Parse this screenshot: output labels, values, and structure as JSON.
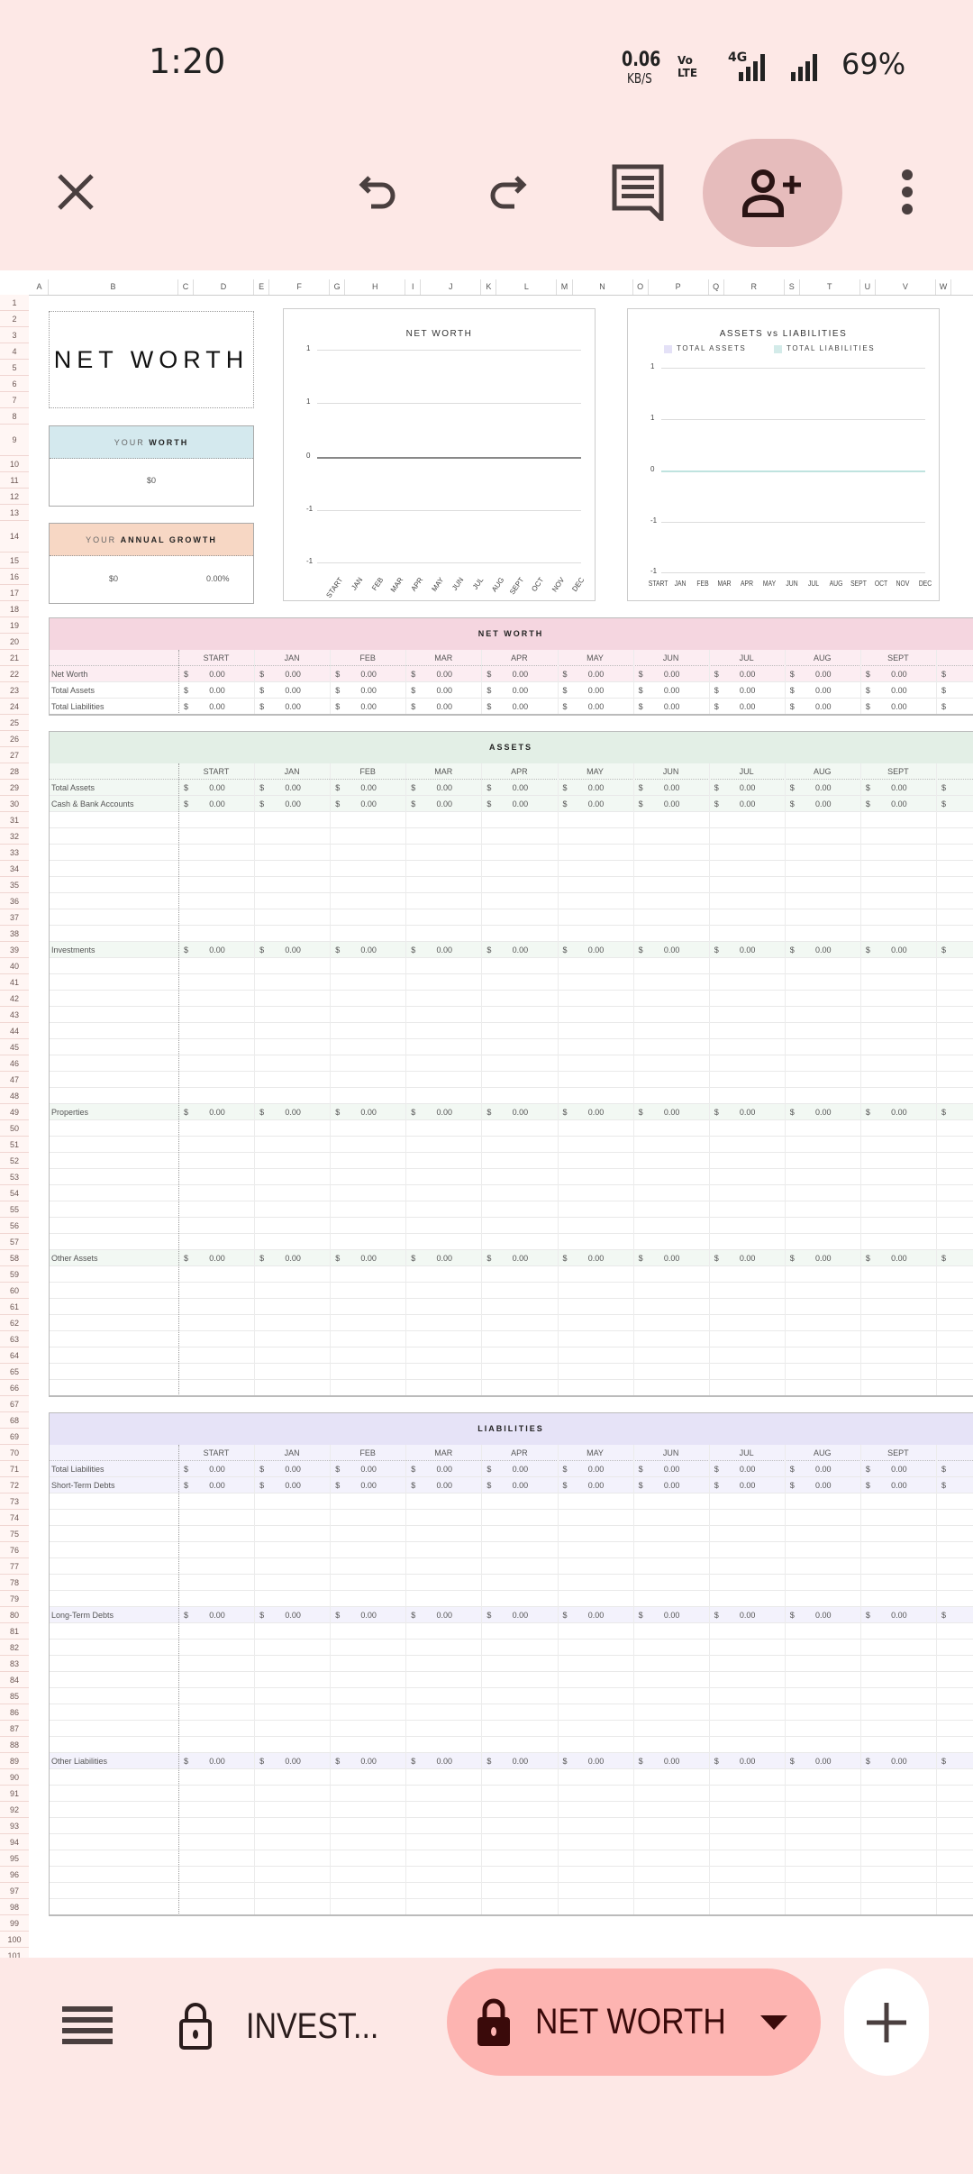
{
  "status_bar": {
    "time": "1:20",
    "net_speed": "0.06",
    "net_unit": "KB/S",
    "volte": "Vo LTE",
    "network": "4G",
    "battery": "69%"
  },
  "toolbar": {
    "icons": [
      "close-icon",
      "undo-icon",
      "redo-icon",
      "comment-icon",
      "add-person-icon",
      "more-vert-icon"
    ],
    "share_bg": "#e6bcbc"
  },
  "columns": [
    "A",
    "B",
    "C",
    "D",
    "E",
    "F",
    "G",
    "H",
    "I",
    "J",
    "K",
    "L",
    "M",
    "N",
    "O",
    "P",
    "Q",
    "R",
    "S",
    "T",
    "U",
    "V",
    "W"
  ],
  "row_count": 101,
  "summary": {
    "title": "NET WORTH",
    "your_worth": {
      "prefix": "YOUR",
      "bold": "WORTH",
      "value": "$0",
      "color": "#d4e9ee"
    },
    "annual_growth": {
      "prefix": "YOUR",
      "bold": "ANNUAL GROWTH",
      "value": "$0",
      "percent": "0.00%",
      "color": "#f7d7c4"
    }
  },
  "chart_data": [
    {
      "type": "line",
      "title": "NET WORTH",
      "categories": [
        "START",
        "JAN",
        "FEB",
        "MAR",
        "APR",
        "MAY",
        "JUN",
        "JUL",
        "AUG",
        "SEPT",
        "OCT",
        "NOV",
        "DEC"
      ],
      "y_tick_labels": [
        "1",
        "1",
        "0",
        "-1",
        "-1"
      ],
      "series": [
        {
          "values": [
            0,
            0,
            0,
            0,
            0,
            0,
            0,
            0,
            0,
            0,
            0,
            0,
            0
          ]
        }
      ],
      "grid": true,
      "x_labels_rotated": true
    },
    {
      "type": "line",
      "title": "ASSETS vs LIABILITIES",
      "categories": [
        "START",
        "JAN",
        "FEB",
        "MAR",
        "APR",
        "MAY",
        "JUN",
        "JUL",
        "AUG",
        "SEPT",
        "OCT",
        "NOV",
        "DEC"
      ],
      "y_tick_labels": [
        "1",
        "1",
        "0",
        "-1",
        "-1"
      ],
      "series": [
        {
          "name": "TOTAL ASSETS",
          "color": "#e4e1f7",
          "values": [
            0,
            0,
            0,
            0,
            0,
            0,
            0,
            0,
            0,
            0,
            0,
            0,
            0
          ]
        },
        {
          "name": "TOTAL LIABILITIES",
          "color": "#d3ebe9",
          "values": [
            0,
            0,
            0,
            0,
            0,
            0,
            0,
            0,
            0,
            0,
            0,
            0,
            0
          ]
        }
      ],
      "legend": "top",
      "grid": true
    }
  ],
  "currency_symbol": "$",
  "months": [
    "START",
    "JAN",
    "FEB",
    "MAR",
    "APR",
    "MAY",
    "JUN",
    "JUL",
    "AUG",
    "SEPT"
  ],
  "sections": [
    {
      "title": "NET WORTH",
      "header_color": "#f5d6e0",
      "light_color": "#fcedf2",
      "rows": [
        {
          "label": "Net Worth",
          "values": [
            "0.00",
            "0.00",
            "0.00",
            "0.00",
            "0.00",
            "0.00",
            "0.00",
            "0.00",
            "0.00",
            "0.00"
          ]
        },
        {
          "label": "Total Assets",
          "values": [
            "0.00",
            "0.00",
            "0.00",
            "0.00",
            "0.00",
            "0.00",
            "0.00",
            "0.00",
            "0.00",
            "0.00"
          ]
        },
        {
          "label": "Total Liabilities",
          "values": [
            "0.00",
            "0.00",
            "0.00",
            "0.00",
            "0.00",
            "0.00",
            "0.00",
            "0.00",
            "0.00",
            "0.00"
          ]
        }
      ]
    },
    {
      "title": "ASSETS",
      "header_color": "#e3efe6",
      "light_color": "#f2f8f3",
      "rows": [
        {
          "label": "Total Assets",
          "values": [
            "0.00",
            "0.00",
            "0.00",
            "0.00",
            "0.00",
            "0.00",
            "0.00",
            "0.00",
            "0.00",
            "0.00"
          ]
        },
        {
          "label": "Cash & Bank Accounts",
          "values": [
            "0.00",
            "0.00",
            "0.00",
            "0.00",
            "0.00",
            "0.00",
            "0.00",
            "0.00",
            "0.00",
            "0.00"
          ]
        },
        {
          "label": "Investments",
          "values": [
            "0.00",
            "0.00",
            "0.00",
            "0.00",
            "0.00",
            "0.00",
            "0.00",
            "0.00",
            "0.00",
            "0.00"
          ]
        },
        {
          "label": "Properties",
          "values": [
            "0.00",
            "0.00",
            "0.00",
            "0.00",
            "0.00",
            "0.00",
            "0.00",
            "0.00",
            "0.00",
            "0.00"
          ]
        },
        {
          "label": "Other Assets",
          "values": [
            "0.00",
            "0.00",
            "0.00",
            "0.00",
            "0.00",
            "0.00",
            "0.00",
            "0.00",
            "0.00",
            "0.00"
          ]
        }
      ]
    },
    {
      "title": "LIABILITIES",
      "header_color": "#e6e3f7",
      "light_color": "#f3f2fc",
      "rows": [
        {
          "label": "Total Liabilities",
          "values": [
            "0.00",
            "0.00",
            "0.00",
            "0.00",
            "0.00",
            "0.00",
            "0.00",
            "0.00",
            "0.00",
            "0.00"
          ]
        },
        {
          "label": "Short-Term Debts",
          "values": [
            "0.00",
            "0.00",
            "0.00",
            "0.00",
            "0.00",
            "0.00",
            "0.00",
            "0.00",
            "0.00",
            "0.00"
          ]
        },
        {
          "label": "Long-Term Debts",
          "values": [
            "0.00",
            "0.00",
            "0.00",
            "0.00",
            "0.00",
            "0.00",
            "0.00",
            "0.00",
            "0.00",
            "0.00"
          ]
        },
        {
          "label": "Other Liabilities",
          "values": [
            "0.00",
            "0.00",
            "0.00",
            "0.00",
            "0.00",
            "0.00",
            "0.00",
            "0.00",
            "0.00",
            "0.00"
          ]
        }
      ]
    }
  ],
  "bottom_bar": {
    "tabs": [
      {
        "label": "INVEST...",
        "locked": true,
        "active": false
      },
      {
        "label": "NET WORTH",
        "locked": true,
        "active": true
      }
    ],
    "active_color": "#fdb4b1"
  }
}
